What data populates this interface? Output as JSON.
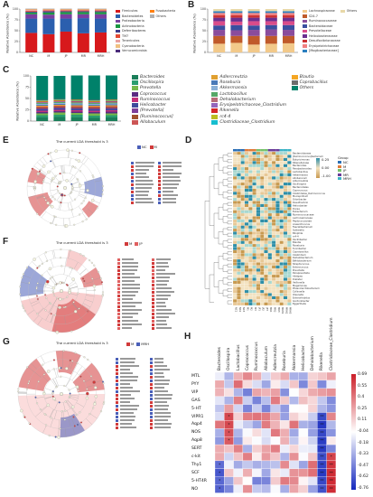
{
  "panels": {
    "A": "A",
    "B": "B",
    "C": "C",
    "D": "D",
    "E": "E",
    "F": "F",
    "G": "G",
    "H": "H"
  },
  "panel_a": {
    "ylabel": "Relative Abundance (%)",
    "groups": [
      "NC",
      "M",
      "JP",
      "MR",
      "MRH"
    ],
    "legend": [
      "Firmicutes",
      "Bacteroidetes",
      "Proteobacteria",
      "Actinobacteria",
      "Deferribacteres",
      "TM7",
      "Tenericutes",
      "Cyanobacteria",
      "Verrucomicrobia",
      "Fusobacteria",
      "Others"
    ],
    "colors": [
      "#d7191c",
      "#2b5fae",
      "#7a3fa0",
      "#1a9641",
      "#3c3c8c",
      "#e34a33",
      "#e8a0a0",
      "#f0c080",
      "#4b2b7a",
      "#ff7f0e",
      "#b0b0b0"
    ]
  },
  "panel_b": {
    "ylabel": "Relative Abundance (%)",
    "groups": [
      "NC",
      "M",
      "JP",
      "MR",
      "MRH"
    ],
    "legend": [
      "Lachnospiraceae",
      "S24-7",
      "Ruminococcaceae",
      "Bacteroidaceae",
      "Prevotellaceae",
      "Helicobacteraceae",
      "Desulfovibrionaceae",
      "Erysipelotrichaceae",
      "[Mogibacteriaceae]",
      "Others"
    ],
    "colors": [
      "#f2c98a",
      "#c05a2a",
      "#8a4c9c",
      "#3a4fa0",
      "#d94c8a",
      "#6b2f8f",
      "#cc3333",
      "#f08080",
      "#2a7fbf",
      "#e8d8a8"
    ]
  },
  "panel_c": {
    "ylabel": "Relative Abundance (%)",
    "groups": [
      "NC",
      "M",
      "JP",
      "MR",
      "MRH"
    ],
    "legend": [
      "Bacteroides",
      "Oscillospira",
      "Prevotella",
      "Coprococcus",
      "Ruminococcus",
      "Helicobacter",
      "[Prevotella]",
      "[Ruminococcus]",
      "Allobaculum",
      "Adlercreutzia",
      "Roseburia",
      "Akkermansia",
      "Lactobacillus",
      "Dehalobacterium",
      "Erysipelotrichaceae_Clostridium",
      "Rikenella",
      "rc4-4",
      "Clostridiaceae_Clostridium",
      "Blautia",
      "Coprobacillus",
      "Others"
    ],
    "colors": [
      "#1b7f5a",
      "#2a9d6f",
      "#76b84b",
      "#5b2c83",
      "#c4307a",
      "#3e4a9c",
      "#7d3f98",
      "#a0522d",
      "#cc5555",
      "#e0a030",
      "#4a7ab8",
      "#8ab0d8",
      "#55a868",
      "#b76e79",
      "#9467bd",
      "#d62728",
      "#bcbd22",
      "#17becf",
      "#f5a623",
      "#6c6c6c",
      "#00816a"
    ]
  },
  "panel_e": {
    "title": "The current LDA threshold is 3",
    "legend_groups": [
      "NC",
      "M"
    ],
    "group_colors": [
      "#4a5fb8",
      "#d13a3a"
    ]
  },
  "panel_f": {
    "title": "The current LDA threshold is 3",
    "legend_groups": [
      "M",
      "JP"
    ],
    "group_colors": [
      "#d13a3a",
      "#e06060"
    ]
  },
  "panel_g": {
    "title": "The current LDA threshold is 3",
    "legend_groups": [
      "M",
      "MRH"
    ],
    "group_colors": [
      "#d13a3a",
      "#4a5fb8"
    ]
  },
  "panel_d": {
    "scale_labels": [
      "0.25",
      "0.00",
      "-1.00"
    ],
    "group_legend_title": "Group",
    "group_legend": [
      "NC",
      "M",
      "JP",
      "MR",
      "MRH"
    ],
    "group_colors": [
      "#2b6fb5",
      "#e07b39",
      "#76c16b",
      "#6a3d9a",
      "#3cb3c5"
    ],
    "rows": [
      "Bacteroidaceae",
      "[Ruminococcus]bacterium",
      "Butyricimonas",
      "Rikenellaceae",
      "Bacteroides",
      "Parabacteroides",
      "Lactobacillus",
      "Akkermansia",
      "Allobaculum",
      "Adlercreutzia",
      "Oscillospira",
      "Bacteroidales",
      "Coprococcus",
      "Clostridiales_Ruminococcus",
      "Mucispirillum",
      "Odoribacter",
      "Desulfovibrio",
      "Helicobacter",
      "Dorea",
      "Eubacterium",
      "Ruminococcaceae",
      "Lachnospiraceae",
      "Peptococcaceae",
      "Anaerotruncus",
      "Faecalibacterium",
      "Sutterella",
      "Bilophila",
      "rc4-4",
      "Oscillibacter",
      "Blautia",
      "Roseburia",
      "Turicibacter",
      "Coprobacillus",
      "Clostridium",
      "Dehalobacterium",
      "Bifidobacterium",
      "Streptococcus",
      "Enterococcus",
      "Prevotella",
      "Paraprevotella",
      "Alistipes",
      "Dialister",
      "Veillonella",
      "Megamonas",
      "Phascolarctobacterium",
      "Collinsella",
      "Olsenella",
      "Enterorhabdus",
      "Gordonibacter",
      "Eggerthella"
    ]
  },
  "panel_h": {
    "columns": [
      "Bacteroides",
      "Oscillospira",
      "Lactobacillus",
      "Coprococcus",
      "Ruminococcus",
      "Allobaculum",
      "Adlercreutzia",
      "Roseburia",
      "Akkermansia",
      "Helicobacter",
      "Dehalobacterium",
      "Rikenella",
      "Clostridiaceae_Clostridium"
    ],
    "rows": [
      "MTL",
      "PYY",
      "VIP",
      "GAS",
      "5-HT",
      "VIPR1",
      "Aqp4",
      "NOS",
      "Aqp8",
      "SERT",
      "c-kit",
      "Thy1",
      "SCF",
      "5-HT4R",
      "NO"
    ],
    "scale_labels": [
      "0.69",
      "0.55",
      "0.4",
      "0.25",
      "0.11",
      "-0.04",
      "-0.18",
      "-0.33",
      "-0.47",
      "-0.62",
      "-0.76"
    ]
  }
}
